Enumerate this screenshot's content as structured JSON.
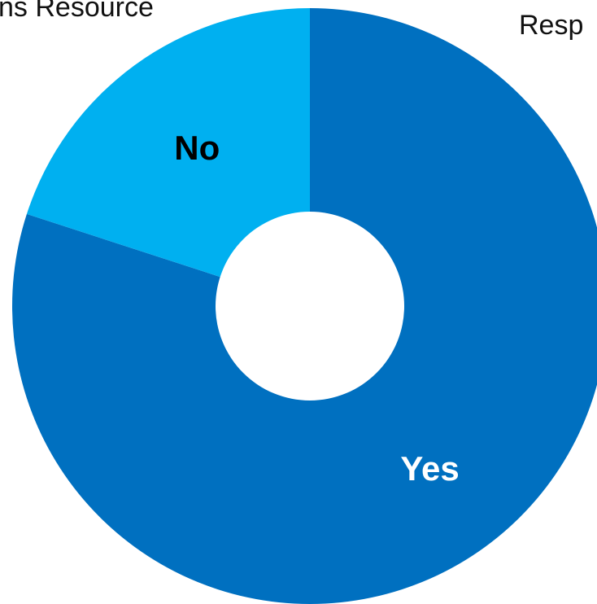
{
  "header": {
    "left_text": "ns Resource",
    "right_text": "Resp"
  },
  "chart_data": {
    "type": "pie",
    "donut": true,
    "slices": [
      {
        "label": "Yes",
        "value": 80,
        "color": "#0070C0",
        "label_color": "#ffffff"
      },
      {
        "label": "No",
        "value": 20,
        "color": "#00B0F0",
        "label_color": "#000000"
      }
    ],
    "start_angle_deg": 0,
    "direction": "clockwise"
  },
  "colors": {
    "background": "#ffffff",
    "hole": "#ffffff"
  }
}
